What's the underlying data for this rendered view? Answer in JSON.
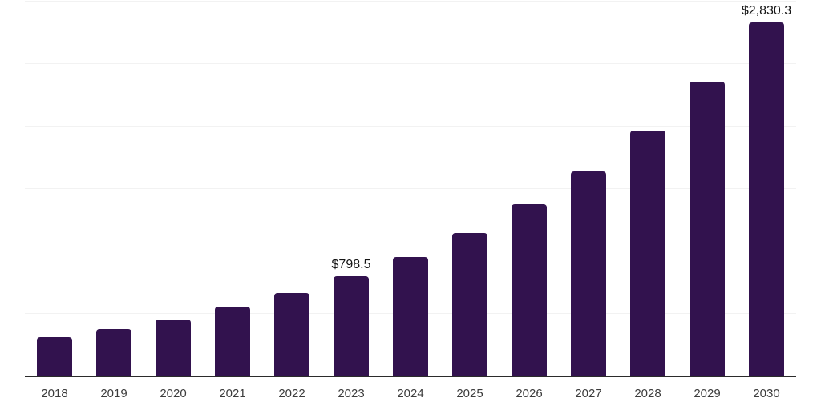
{
  "chart_data": {
    "type": "bar",
    "title": "",
    "categories": [
      "2018",
      "2019",
      "2020",
      "2021",
      "2022",
      "2023",
      "2024",
      "2025",
      "2026",
      "2027",
      "2028",
      "2029",
      "2030"
    ],
    "values": [
      315,
      380,
      456,
      556,
      665,
      798.5,
      953,
      1146,
      1377,
      1641,
      1967,
      2358,
      2830.3
    ],
    "value_labels": [
      "",
      "",
      "",
      "",
      "",
      "$798.5",
      "",
      "",
      "",
      "",
      "",
      "",
      "$2,830.3"
    ],
    "ylim": [
      0,
      3000
    ],
    "gridline_step": 500,
    "grid": true,
    "legend": "none",
    "colors": {
      "bar": "#32124e",
      "gridline": "#f2f2f2",
      "axis_line": "#2b2b2b",
      "value_label_text": "#141414",
      "x_label_text": "#3c3c3c"
    }
  }
}
